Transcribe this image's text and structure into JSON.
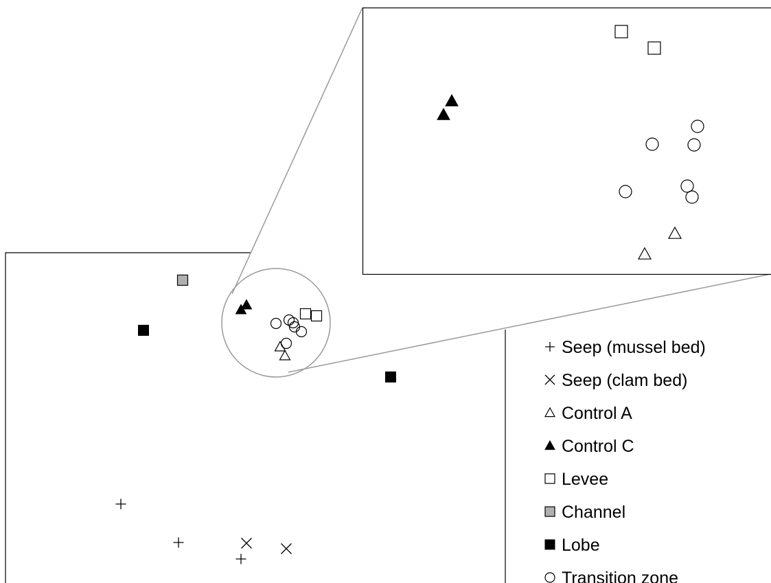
{
  "chart_data": {
    "type": "scatter",
    "title": "",
    "xlabel": "",
    "ylabel": "",
    "grid": false,
    "legend_position": "bottom-right",
    "inset": "zoomed view of the circled central cluster",
    "series": [
      {
        "name": "Seep (mussel bed)",
        "marker": "plus",
        "color": "#000000",
        "points": [
          [
            176,
            734
          ],
          [
            260,
            790
          ],
          [
            351,
            814
          ]
        ]
      },
      {
        "name": "Seep (clam bed)",
        "marker": "cross",
        "color": "#000000",
        "points": [
          [
            359,
            791
          ],
          [
            417,
            799
          ]
        ]
      },
      {
        "name": "Control A",
        "marker": "triangle-open",
        "color": "#000000",
        "points": [
          [
            408,
            505
          ],
          [
            415,
            518
          ]
        ]
      },
      {
        "name": "Control C",
        "marker": "triangle-filled",
        "color": "#000000",
        "points": [
          [
            351,
            451
          ],
          [
            359,
            444
          ]
        ]
      },
      {
        "name": "Levee",
        "marker": "square-open",
        "color": "#000000",
        "points": [
          [
            445,
            457
          ],
          [
            461,
            460
          ]
        ]
      },
      {
        "name": "Channel",
        "marker": "square-gray",
        "color": "#b0b0b0",
        "points": [
          [
            266,
            408
          ]
        ]
      },
      {
        "name": "Lobe",
        "marker": "square-filled",
        "color": "#000000",
        "points": [
          [
            209,
            481
          ],
          [
            569,
            549
          ]
        ]
      },
      {
        "name": "Transition zone",
        "marker": "circle-open",
        "color": "#000000",
        "points": [
          [
            402,
            471
          ],
          [
            421,
            466
          ],
          [
            427,
            470
          ],
          [
            429,
            476
          ],
          [
            439,
            483
          ],
          [
            417,
            500
          ]
        ]
      }
    ],
    "inset_points": [
      {
        "series": "Levee",
        "points": [
          [
            905,
            46
          ],
          [
            953,
            70
          ]
        ]
      },
      {
        "series": "Control C",
        "points": [
          [
            658,
            147
          ],
          [
            646,
            167
          ]
        ]
      },
      {
        "series": "Transition zone",
        "points": [
          [
            1016,
            184
          ],
          [
            950,
            210
          ],
          [
            1011,
            211
          ],
          [
            911,
            279
          ],
          [
            1001,
            271
          ],
          [
            1008,
            287
          ]
        ]
      },
      {
        "series": "Control A",
        "points": [
          [
            983,
            340
          ],
          [
            939,
            370
          ]
        ]
      }
    ]
  }
}
